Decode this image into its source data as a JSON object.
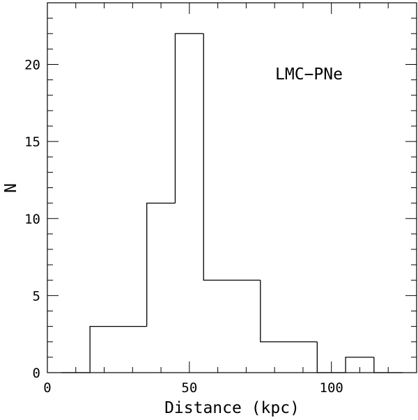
{
  "chart_data": {
    "type": "bar",
    "histogram": true,
    "xlabel": "Distance (kpc)",
    "ylabel": "N",
    "annotation": "LMC−PNe",
    "xlim": [
      0,
      130
    ],
    "ylim": [
      0,
      24
    ],
    "x_major_ticks": [
      0,
      50,
      100
    ],
    "x_minor_step": 10,
    "y_major_ticks": [
      0,
      5,
      10,
      15,
      20
    ],
    "y_minor_step": 1,
    "grid": false,
    "bins": [
      {
        "from": 5,
        "to": 15,
        "value": 0
      },
      {
        "from": 15,
        "to": 25,
        "value": 3
      },
      {
        "from": 25,
        "to": 35,
        "value": 3
      },
      {
        "from": 35,
        "to": 45,
        "value": 11
      },
      {
        "from": 45,
        "to": 55,
        "value": 22
      },
      {
        "from": 55,
        "to": 65,
        "value": 6
      },
      {
        "from": 65,
        "to": 75,
        "value": 6
      },
      {
        "from": 75,
        "to": 85,
        "value": 2
      },
      {
        "from": 85,
        "to": 95,
        "value": 2
      },
      {
        "from": 95,
        "to": 105,
        "value": 0
      },
      {
        "from": 105,
        "to": 115,
        "value": 1
      },
      {
        "from": 115,
        "to": 125,
        "value": 0
      }
    ]
  }
}
